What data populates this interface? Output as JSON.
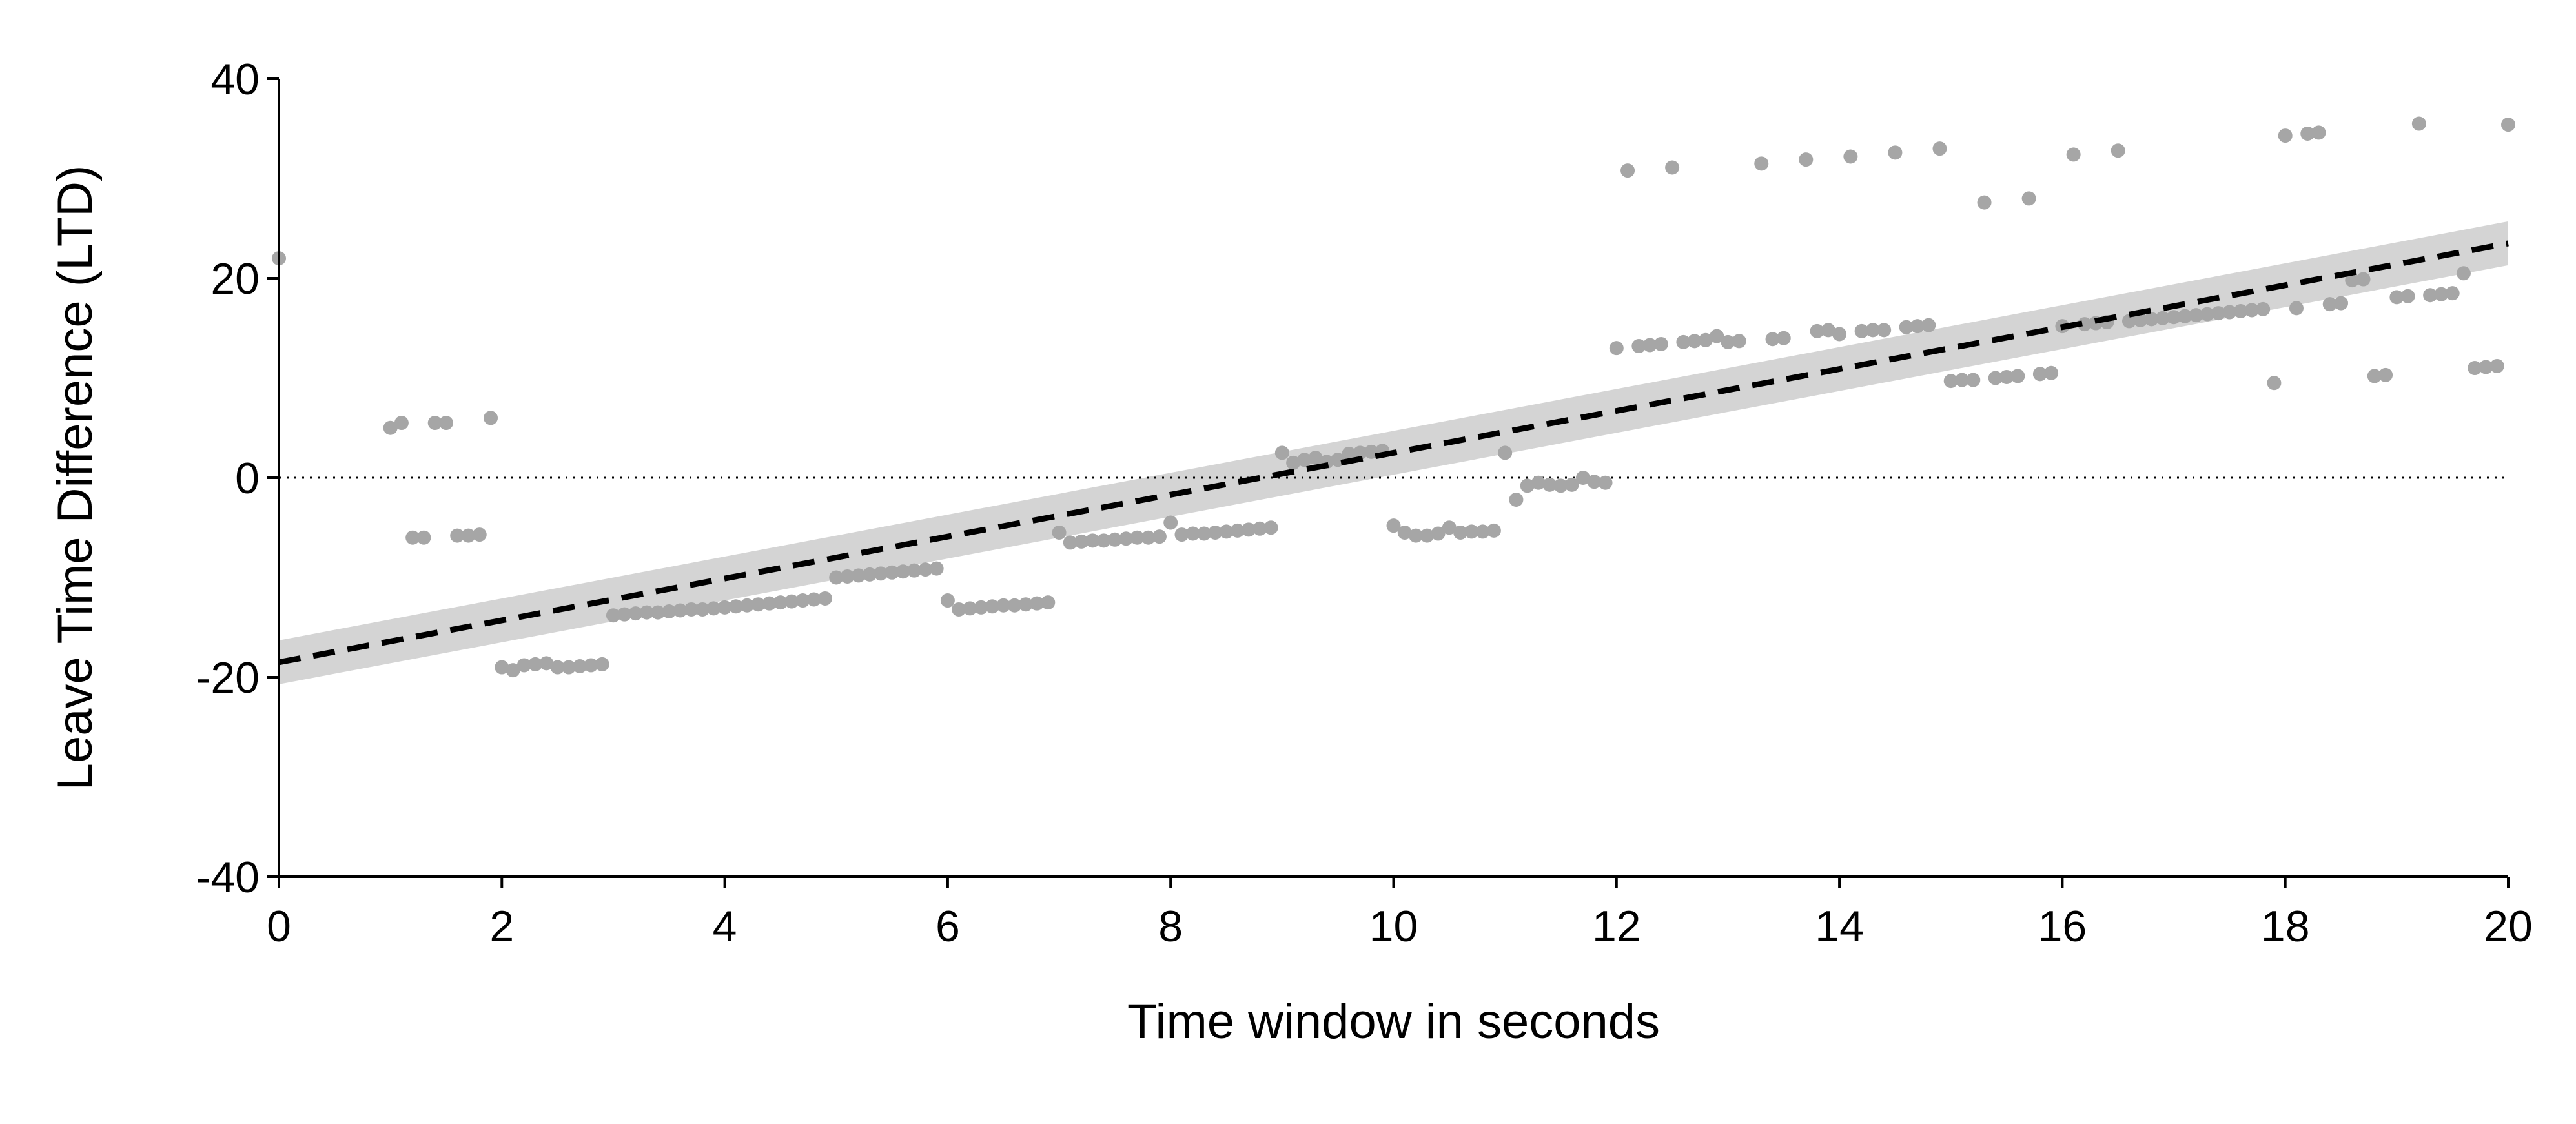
{
  "chart_data": {
    "type": "scatter",
    "title": "",
    "xlabel": "Time window in seconds",
    "ylabel": "Leave Time Difference (LTD)",
    "xlim": [
      0,
      20
    ],
    "ylim": [
      -40,
      40
    ],
    "x_ticks": [
      0,
      2,
      4,
      6,
      8,
      10,
      12,
      14,
      16,
      18,
      20
    ],
    "y_ticks": [
      -40,
      -20,
      0,
      20,
      40
    ],
    "x_tick_labels": [
      "0",
      "2",
      "4",
      "6",
      "8",
      "10",
      "12",
      "14",
      "16",
      "18",
      "20"
    ],
    "y_tick_labels": [
      "-40",
      "-20",
      "0",
      "20",
      "40"
    ],
    "grid": false,
    "legend": "none",
    "reference_line": {
      "y": 0,
      "style": "dotted"
    },
    "fit": {
      "style": "dashed",
      "start": [
        0,
        -18.5
      ],
      "end": [
        20,
        23.5
      ],
      "ci_halfwidth": 2.2
    },
    "colors": {
      "points": "#a6a6a6",
      "fit_line": "#000000",
      "ci_band": "#d4d4d4",
      "axis": "#000000"
    },
    "points": [
      [
        0.0,
        22
      ],
      [
        1.0,
        5
      ],
      [
        1.1,
        5.5
      ],
      [
        1.4,
        5.5
      ],
      [
        1.5,
        5.5
      ],
      [
        1.9,
        6
      ],
      [
        1.2,
        -6
      ],
      [
        1.3,
        -6
      ],
      [
        1.6,
        -5.8
      ],
      [
        1.7,
        -5.8
      ],
      [
        1.8,
        -5.7
      ],
      [
        2.0,
        -19
      ],
      [
        2.1,
        -19.3
      ],
      [
        2.2,
        -18.8
      ],
      [
        2.3,
        -18.7
      ],
      [
        2.4,
        -18.6
      ],
      [
        2.5,
        -19
      ],
      [
        2.6,
        -19
      ],
      [
        2.7,
        -18.9
      ],
      [
        2.8,
        -18.8
      ],
      [
        2.9,
        -18.7
      ],
      [
        3.0,
        -13.8
      ],
      [
        3.1,
        -13.7
      ],
      [
        3.2,
        -13.6
      ],
      [
        3.3,
        -13.5
      ],
      [
        3.4,
        -13.5
      ],
      [
        3.5,
        -13.4
      ],
      [
        3.6,
        -13.3
      ],
      [
        3.7,
        -13.2
      ],
      [
        3.8,
        -13.2
      ],
      [
        3.9,
        -13.1
      ],
      [
        4.0,
        -13.0
      ],
      [
        4.1,
        -12.9
      ],
      [
        4.2,
        -12.8
      ],
      [
        4.3,
        -12.7
      ],
      [
        4.4,
        -12.6
      ],
      [
        4.5,
        -12.5
      ],
      [
        4.6,
        -12.4
      ],
      [
        4.7,
        -12.3
      ],
      [
        4.8,
        -12.2
      ],
      [
        4.9,
        -12.1
      ],
      [
        5.0,
        -10
      ],
      [
        5.1,
        -9.9
      ],
      [
        5.2,
        -9.8
      ],
      [
        5.3,
        -9.7
      ],
      [
        5.4,
        -9.6
      ],
      [
        5.5,
        -9.5
      ],
      [
        5.6,
        -9.4
      ],
      [
        5.7,
        -9.3
      ],
      [
        5.8,
        -9.2
      ],
      [
        5.9,
        -9.1
      ],
      [
        6.0,
        -12.3
      ],
      [
        6.1,
        -13.2
      ],
      [
        6.2,
        -13.1
      ],
      [
        6.3,
        -13.0
      ],
      [
        6.4,
        -12.9
      ],
      [
        6.5,
        -12.8
      ],
      [
        6.6,
        -12.8
      ],
      [
        6.7,
        -12.7
      ],
      [
        6.8,
        -12.6
      ],
      [
        6.9,
        -12.5
      ],
      [
        7.0,
        -5.5
      ],
      [
        7.1,
        -6.5
      ],
      [
        7.2,
        -6.4
      ],
      [
        7.3,
        -6.3
      ],
      [
        7.4,
        -6.3
      ],
      [
        7.5,
        -6.2
      ],
      [
        7.6,
        -6.1
      ],
      [
        7.7,
        -6.0
      ],
      [
        7.8,
        -6.0
      ],
      [
        7.9,
        -5.9
      ],
      [
        8.0,
        -4.5
      ],
      [
        8.1,
        -5.7
      ],
      [
        8.2,
        -5.6
      ],
      [
        8.3,
        -5.6
      ],
      [
        8.4,
        -5.5
      ],
      [
        8.5,
        -5.4
      ],
      [
        8.6,
        -5.3
      ],
      [
        8.7,
        -5.2
      ],
      [
        8.8,
        -5.1
      ],
      [
        8.9,
        -5.0
      ],
      [
        9.0,
        2.5
      ],
      [
        9.1,
        1.5
      ],
      [
        9.2,
        1.8
      ],
      [
        9.3,
        2.0
      ],
      [
        9.4,
        1.6
      ],
      [
        9.5,
        1.8
      ],
      [
        9.6,
        2.4
      ],
      [
        9.7,
        2.5
      ],
      [
        9.8,
        2.6
      ],
      [
        9.9,
        2.7
      ],
      [
        10.0,
        -4.8
      ],
      [
        10.1,
        -5.5
      ],
      [
        10.2,
        -5.8
      ],
      [
        10.3,
        -5.8
      ],
      [
        10.4,
        -5.6
      ],
      [
        10.5,
        -5.0
      ],
      [
        10.6,
        -5.5
      ],
      [
        10.7,
        -5.4
      ],
      [
        10.8,
        -5.4
      ],
      [
        10.9,
        -5.3
      ],
      [
        11.0,
        2.5
      ],
      [
        11.1,
        -2.2
      ],
      [
        11.2,
        -0.8
      ],
      [
        11.3,
        -0.5
      ],
      [
        11.4,
        -0.7
      ],
      [
        11.5,
        -0.8
      ],
      [
        11.6,
        -0.7
      ],
      [
        11.7,
        0
      ],
      [
        11.8,
        -0.4
      ],
      [
        11.9,
        -0.5
      ],
      [
        12.0,
        13
      ],
      [
        12.1,
        30.8
      ],
      [
        12.2,
        13.2
      ],
      [
        12.3,
        13.3
      ],
      [
        12.4,
        13.4
      ],
      [
        12.5,
        31.1
      ],
      [
        12.6,
        13.6
      ],
      [
        12.7,
        13.7
      ],
      [
        12.8,
        13.8
      ],
      [
        12.9,
        14.2
      ],
      [
        13.0,
        13.6
      ],
      [
        13.1,
        13.7
      ],
      [
        13.3,
        31.5
      ],
      [
        13.4,
        13.9
      ],
      [
        13.5,
        14.0
      ],
      [
        13.7,
        31.9
      ],
      [
        13.8,
        14.7
      ],
      [
        13.9,
        14.8
      ],
      [
        14.0,
        14.4
      ],
      [
        14.1,
        32.2
      ],
      [
        14.2,
        14.7
      ],
      [
        14.3,
        14.8
      ],
      [
        14.4,
        14.8
      ],
      [
        14.5,
        32.6
      ],
      [
        14.6,
        15.1
      ],
      [
        14.7,
        15.2
      ],
      [
        14.8,
        15.3
      ],
      [
        14.9,
        33.0
      ],
      [
        15.0,
        9.7
      ],
      [
        15.1,
        9.8
      ],
      [
        15.2,
        9.8
      ],
      [
        15.3,
        27.6
      ],
      [
        15.4,
        10.0
      ],
      [
        15.5,
        10.1
      ],
      [
        15.6,
        10.2
      ],
      [
        15.7,
        28.0
      ],
      [
        15.8,
        10.4
      ],
      [
        15.9,
        10.5
      ],
      [
        16.0,
        15.2
      ],
      [
        16.1,
        32.4
      ],
      [
        16.2,
        15.4
      ],
      [
        16.3,
        15.5
      ],
      [
        16.4,
        15.6
      ],
      [
        16.5,
        32.8
      ],
      [
        16.6,
        15.7
      ],
      [
        16.7,
        15.8
      ],
      [
        16.8,
        15.9
      ],
      [
        16.9,
        16.0
      ],
      [
        17.0,
        16.1
      ],
      [
        17.1,
        16.2
      ],
      [
        17.2,
        16.3
      ],
      [
        17.3,
        16.4
      ],
      [
        17.4,
        16.5
      ],
      [
        17.5,
        16.6
      ],
      [
        17.6,
        16.7
      ],
      [
        17.7,
        16.8
      ],
      [
        17.8,
        16.9
      ],
      [
        17.9,
        9.5
      ],
      [
        18.0,
        34.3
      ],
      [
        18.1,
        17.0
      ],
      [
        18.2,
        34.5
      ],
      [
        18.3,
        34.6
      ],
      [
        18.4,
        17.4
      ],
      [
        18.5,
        17.5
      ],
      [
        18.6,
        19.8
      ],
      [
        18.7,
        19.9
      ],
      [
        18.8,
        10.2
      ],
      [
        18.9,
        10.3
      ],
      [
        19.0,
        18.1
      ],
      [
        19.1,
        18.2
      ],
      [
        19.2,
        35.5
      ],
      [
        19.3,
        18.3
      ],
      [
        19.4,
        18.4
      ],
      [
        19.5,
        18.5
      ],
      [
        19.6,
        20.5
      ],
      [
        19.7,
        11.0
      ],
      [
        19.8,
        11.1
      ],
      [
        19.9,
        11.2
      ],
      [
        20.0,
        35.4
      ]
    ]
  }
}
